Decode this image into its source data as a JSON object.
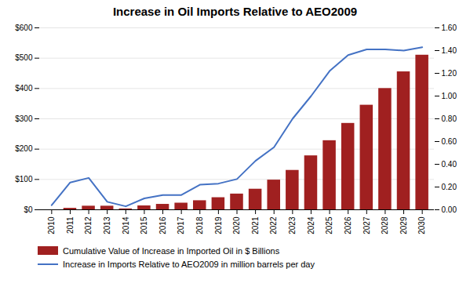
{
  "chart_data": {
    "type": "bar",
    "title": "Increase in Oil Imports Relative to AEO2009",
    "categories": [
      "2010",
      "2011",
      "2012",
      "2013",
      "2014",
      "2015",
      "2016",
      "2017",
      "2018",
      "2019",
      "2020",
      "2021",
      "2022",
      "2023",
      "2024",
      "2025",
      "2026",
      "2027",
      "2028",
      "2029",
      "2030"
    ],
    "series": [
      {
        "name": "Cumulative Value of Increase in Imported Oil in $ Billions",
        "type": "bar",
        "color": "#A02020",
        "values": [
          0,
          5,
          12,
          12,
          3,
          13,
          18,
          22,
          30,
          40,
          52,
          68,
          98,
          130,
          178,
          228,
          285,
          345,
          400,
          455,
          510
        ]
      },
      {
        "name": "Increase in Imports Relative to AEO2009 in million barrels per day",
        "type": "line",
        "color": "#4472C4",
        "axis": "y2",
        "values": [
          0.04,
          0.24,
          0.28,
          0.07,
          0.03,
          0.1,
          0.13,
          0.13,
          0.22,
          0.23,
          0.27,
          0.43,
          0.55,
          0.8,
          1.0,
          1.22,
          1.36,
          1.41,
          1.41,
          1.4,
          1.43
        ]
      }
    ],
    "ylim": [
      0,
      600
    ],
    "yticks": [
      {
        "value": 0,
        "label": "$0"
      },
      {
        "value": 100,
        "label": "$100"
      },
      {
        "value": 200,
        "label": "$200"
      },
      {
        "value": 300,
        "label": "$300"
      },
      {
        "value": 400,
        "label": "$400"
      },
      {
        "value": 500,
        "label": "$500"
      },
      {
        "value": 600,
        "label": "$600"
      }
    ],
    "y2lim": [
      0.0,
      1.6
    ],
    "y2ticks": [
      {
        "value": 0,
        "label": "0.00"
      },
      {
        "value": 0.2,
        "label": "0.20"
      },
      {
        "value": 0.4,
        "label": "0.40"
      },
      {
        "value": 0.6,
        "label": "0.60"
      },
      {
        "value": 0.8,
        "label": "0.80"
      },
      {
        "value": 1.0,
        "label": "1.00"
      },
      {
        "value": 1.2,
        "label": "1.20"
      },
      {
        "value": 1.4,
        "label": "1.40"
      },
      {
        "value": 1.6,
        "label": "1.60"
      }
    ],
    "grid": true,
    "legend": "bottom"
  }
}
